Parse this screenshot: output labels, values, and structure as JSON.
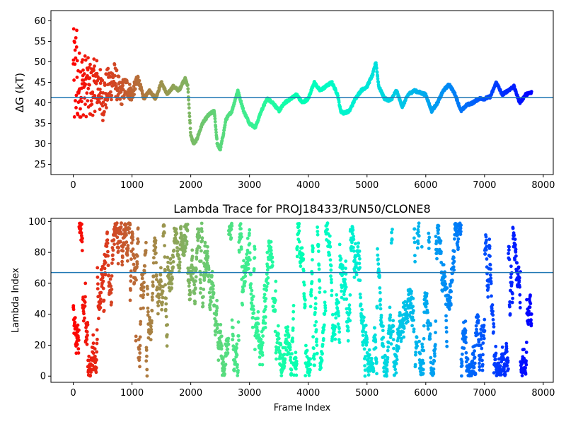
{
  "chart_data": [
    {
      "type": "scatter",
      "title": "",
      "xlabel": "",
      "ylabel": "ΔG (kT)",
      "xlim": [
        -380,
        8170
      ],
      "ylim": [
        22.5,
        62.5
      ],
      "xticks": [
        0,
        1000,
        2000,
        3000,
        4000,
        5000,
        6000,
        7000,
        8000
      ],
      "yticks": [
        25,
        30,
        35,
        40,
        45,
        50,
        55,
        60
      ],
      "xtick_labels": [
        "0",
        "1000",
        "2000",
        "3000",
        "4000",
        "5000",
        "6000",
        "7000",
        "8000"
      ],
      "ytick_labels": [
        "25",
        "30",
        "35",
        "40",
        "45",
        "50",
        "55",
        "60"
      ],
      "hline": 41.3,
      "hline_color": "#1f77b4",
      "colormap": "rainbow (reversed: red at frame 0, violet at last frame)",
      "grid": false,
      "n_frames": 7800,
      "trace_knots": [
        [
          0,
          41
        ],
        [
          50,
          44
        ],
        [
          150,
          45
        ],
        [
          300,
          43
        ],
        [
          400,
          45
        ],
        [
          500,
          41
        ],
        [
          600,
          44
        ],
        [
          700,
          46
        ],
        [
          800,
          42
        ],
        [
          900,
          44
        ],
        [
          1000,
          42
        ],
        [
          1100,
          46
        ],
        [
          1200,
          41
        ],
        [
          1300,
          43
        ],
        [
          1400,
          41
        ],
        [
          1500,
          45
        ],
        [
          1600,
          42
        ],
        [
          1700,
          44
        ],
        [
          1800,
          43
        ],
        [
          1900,
          46
        ],
        [
          1950,
          44
        ],
        [
          2000,
          32
        ],
        [
          2050,
          30
        ],
        [
          2100,
          31
        ],
        [
          2200,
          35
        ],
        [
          2300,
          37
        ],
        [
          2400,
          38
        ],
        [
          2450,
          30
        ],
        [
          2500,
          28.5
        ],
        [
          2550,
          32
        ],
        [
          2600,
          36
        ],
        [
          2700,
          38
        ],
        [
          2800,
          43
        ],
        [
          2900,
          38
        ],
        [
          3000,
          35
        ],
        [
          3100,
          34
        ],
        [
          3200,
          38
        ],
        [
          3300,
          41
        ],
        [
          3400,
          40
        ],
        [
          3500,
          38
        ],
        [
          3600,
          40
        ],
        [
          3700,
          41
        ],
        [
          3800,
          42
        ],
        [
          3900,
          40
        ],
        [
          4000,
          41
        ],
        [
          4100,
          45
        ],
        [
          4200,
          43
        ],
        [
          4300,
          44
        ],
        [
          4400,
          45
        ],
        [
          4500,
          42
        ],
        [
          4550,
          38
        ],
        [
          4600,
          37.5
        ],
        [
          4700,
          38
        ],
        [
          4800,
          41
        ],
        [
          4900,
          43
        ],
        [
          5000,
          44
        ],
        [
          5100,
          47
        ],
        [
          5150,
          50
        ],
        [
          5200,
          44
        ],
        [
          5300,
          41
        ],
        [
          5400,
          40.5
        ],
        [
          5500,
          43
        ],
        [
          5600,
          39
        ],
        [
          5700,
          42
        ],
        [
          5800,
          43
        ],
        [
          5900,
          42.5
        ],
        [
          6000,
          42
        ],
        [
          6100,
          38
        ],
        [
          6200,
          40
        ],
        [
          6300,
          43
        ],
        [
          6400,
          44.5
        ],
        [
          6500,
          42
        ],
        [
          6600,
          38
        ],
        [
          6700,
          39.5
        ],
        [
          6800,
          40
        ],
        [
          6900,
          41
        ],
        [
          7000,
          41
        ],
        [
          7100,
          41.5
        ],
        [
          7200,
          45
        ],
        [
          7300,
          42
        ],
        [
          7400,
          43
        ],
        [
          7500,
          44
        ],
        [
          7600,
          40
        ],
        [
          7700,
          42
        ],
        [
          7800,
          42.5
        ]
      ]
    },
    {
      "type": "scatter",
      "title": "Lambda Trace for PROJ18433/RUN50/CLONE8",
      "xlabel": "Frame Index",
      "ylabel": "Lambda Index",
      "xlim": [
        -380,
        8170
      ],
      "ylim": [
        -4,
        102
      ],
      "xticks": [
        0,
        1000,
        2000,
        3000,
        4000,
        5000,
        6000,
        7000,
        8000
      ],
      "yticks": [
        0,
        20,
        40,
        60,
        80,
        100
      ],
      "xtick_labels": [
        "0",
        "1000",
        "2000",
        "3000",
        "4000",
        "5000",
        "6000",
        "7000",
        "8000"
      ],
      "ytick_labels": [
        "0",
        "20",
        "40",
        "60",
        "80",
        "100"
      ],
      "hline": 67,
      "hline_color": "#1f77b4",
      "colormap": "rainbow (reversed: red at frame 0, violet at last frame)",
      "grid": false,
      "n_frames": 7800,
      "lambda_range": [
        0,
        99
      ]
    }
  ]
}
